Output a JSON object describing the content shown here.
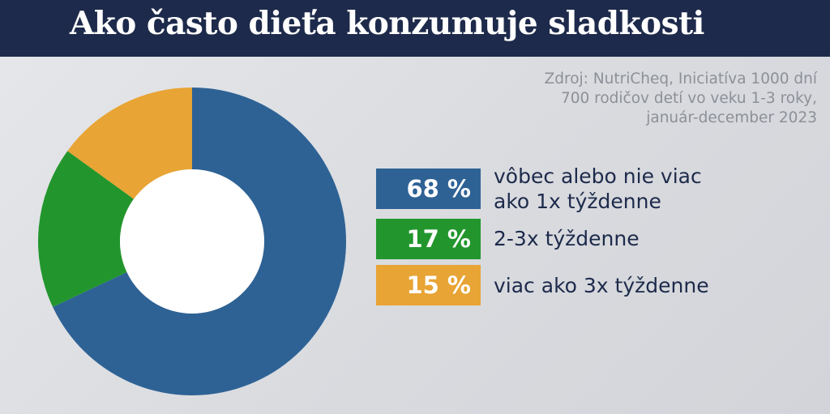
{
  "header": {
    "title": "Ako často dieťa konzumuje sladkosti"
  },
  "source": {
    "lines": [
      "Zdroj: NutriCheq, Iniciatíva 1000 dní",
      "700 rodičov detí vo veku 1-3 roky,",
      "január-december 2023"
    ]
  },
  "colors": {
    "header_bg": "#1d2a4b",
    "text_dark": "#1d2a4b",
    "blue": "#2e6295",
    "green": "#22962d",
    "orange": "#e8a434"
  },
  "chart_data": {
    "type": "pie",
    "variant": "donut",
    "start_angle_deg": 0,
    "direction": "clockwise",
    "slices": [
      {
        "value": 68,
        "value_label": "68 %",
        "label_lines": [
          "vôbec alebo nie viac",
          "ako 1x týždenne"
        ],
        "color": "#2e6295"
      },
      {
        "value": 17,
        "value_label": "17 %",
        "label_lines": [
          "2-3x týždenne"
        ],
        "color": "#22962d"
      },
      {
        "value": 15,
        "value_label": "15 %",
        "label_lines": [
          "viac ako 3x týždenne"
        ],
        "color": "#e8a434"
      }
    ]
  }
}
